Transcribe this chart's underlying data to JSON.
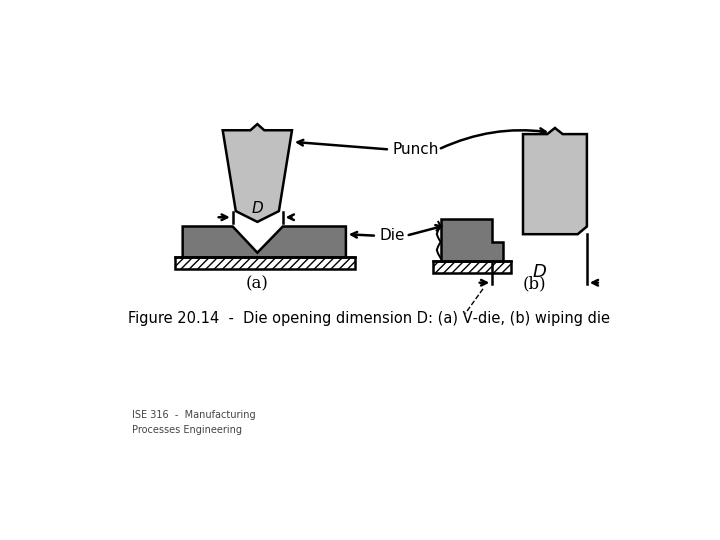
{
  "background_color": "#ffffff",
  "title_text": "Figure 20.14  -  Die opening dimension D: (a) V‐die, (b) wiping die",
  "subtitle_text": "ISE 316  -  Manufacturing\nProcesses Engineering",
  "title_fontsize": 10.5,
  "subtitle_fontsize": 7,
  "punch_label": "Punch",
  "die_label": "Die",
  "a_label": "(a)",
  "b_label": "(b)",
  "light_gray": "#c0c0c0",
  "dark_gray": "#787878",
  "black": "#000000"
}
